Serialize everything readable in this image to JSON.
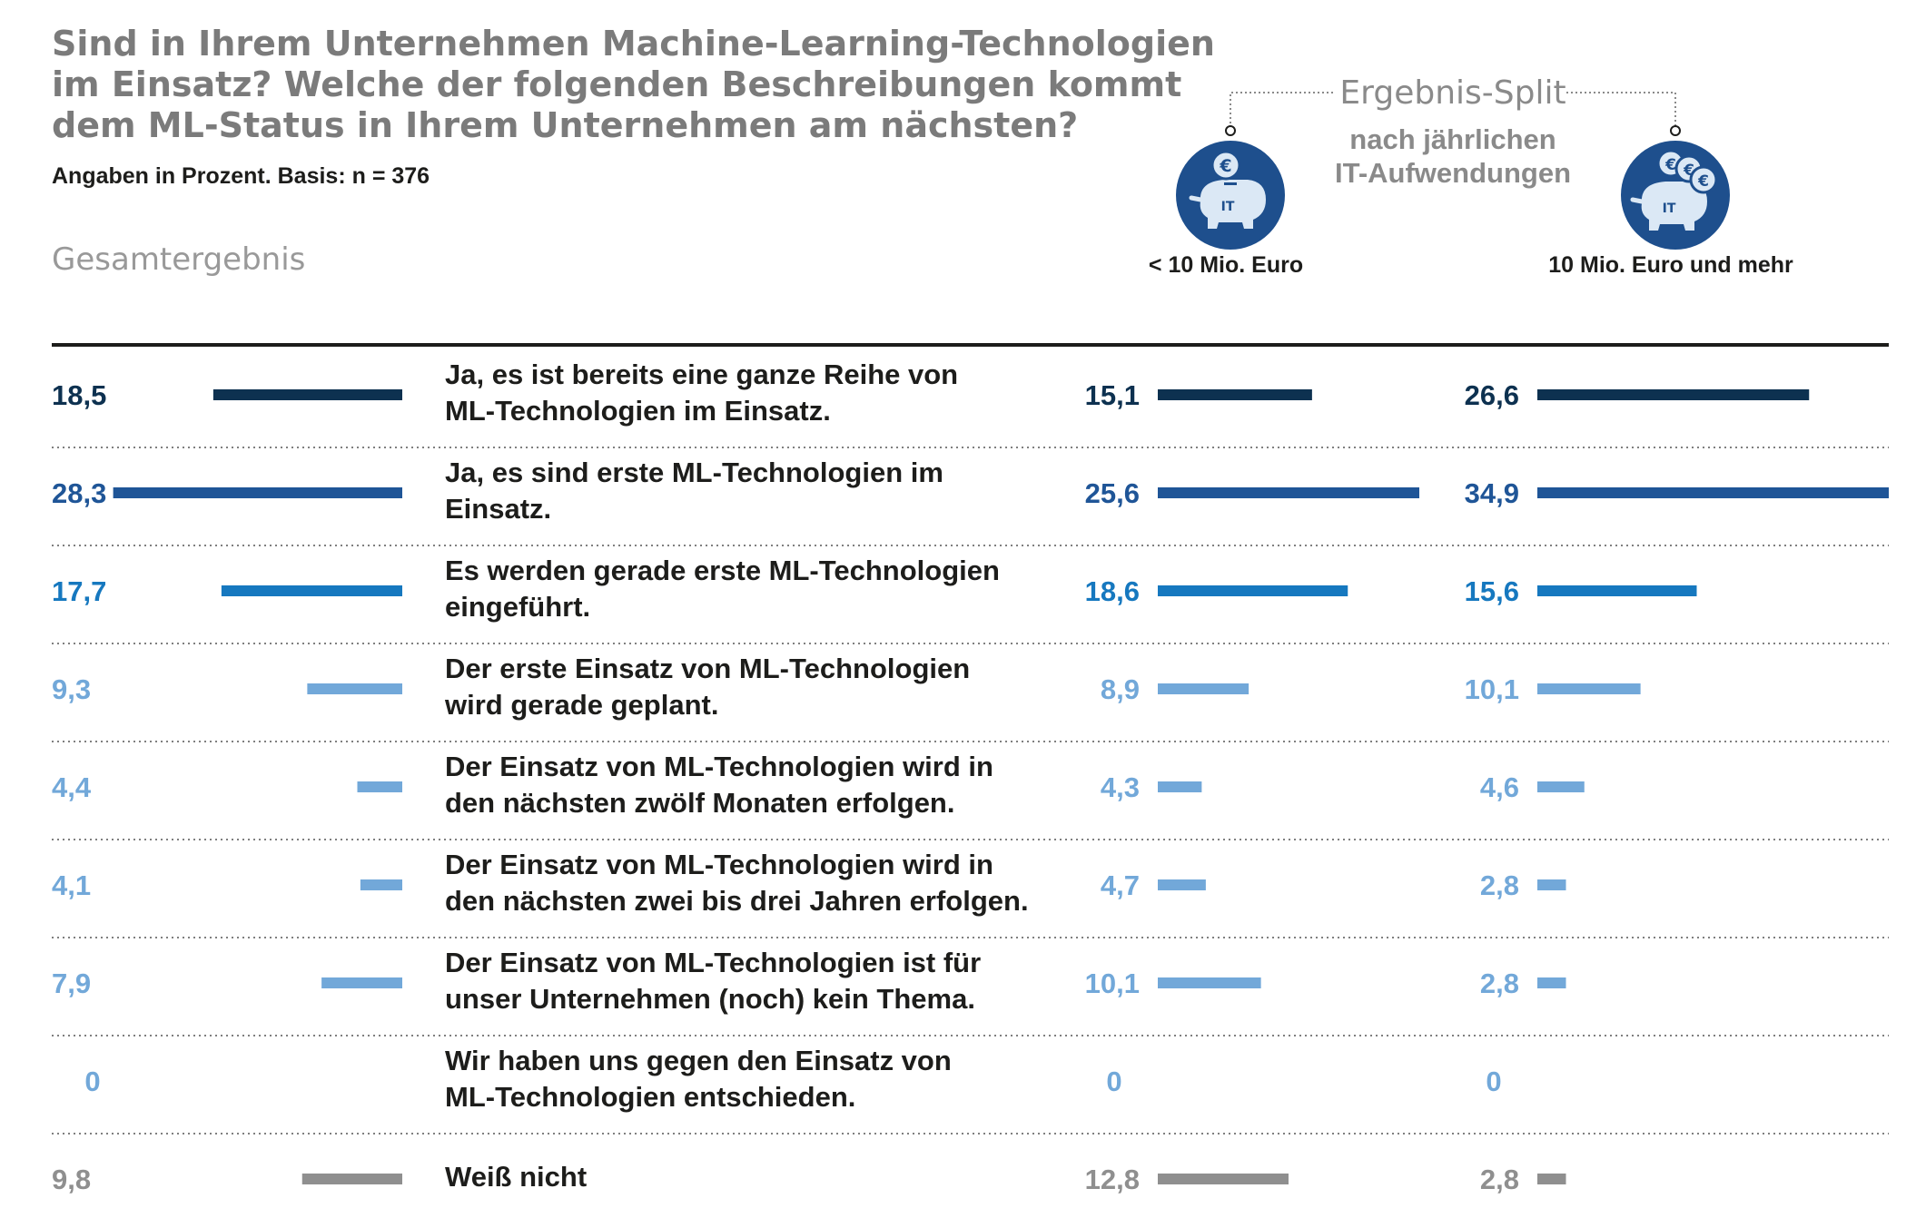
{
  "header": {
    "title_lines": [
      "Sind in Ihrem Unternehmen Machine-Learning-Technologien",
      "im Einsatz? Welche der folgenden Beschreibungen kommt",
      "dem ML-Status in Ihrem Unternehmen am nächsten?"
    ],
    "subtitle": "Angaben in Prozent. Basis: n = 376",
    "overall_label": "Gesamtergebnis"
  },
  "split": {
    "title": "Ergebnis-Split",
    "subtitle_lines": [
      "nach jährlichen",
      "IT-Aufwendungen"
    ],
    "segments": [
      {
        "label": "< 10 Mio. Euro",
        "icon": "piggy-bank-one-euro-icon",
        "icon_text": "IT"
      },
      {
        "label": "10 Mio. Euro und mehr",
        "icon": "piggy-bank-three-euro-icon",
        "icon_text": "IT"
      }
    ]
  },
  "colors": {
    "dark_navy": "#0d3150",
    "dark_blue": "#1f5597",
    "medium_blue": "#1678bf",
    "light_blue": "#72a8d9",
    "gray": "#8f8f8f",
    "icon_fill": "#1e4f8d"
  },
  "chart_data": {
    "type": "bar",
    "orientation": "horizontal",
    "value_format": "de-DE, one decimal",
    "categories": [
      [
        "Ja, es ist bereits eine ganze Reihe von",
        "ML-Technologien im Einsatz."
      ],
      [
        "Ja, es sind erste ML-Technologien im",
        "Einsatz."
      ],
      [
        "Es werden gerade erste ML-Technologien",
        "eingeführt."
      ],
      [
        "Der erste Einsatz von ML-Technologien",
        "wird gerade geplant."
      ],
      [
        "Der Einsatz von ML-Technologien wird in",
        "den nächsten zwölf Monaten erfolgen."
      ],
      [
        "Der Einsatz von ML-Technologien wird in",
        "den nächsten zwei bis drei Jahren erfolgen."
      ],
      [
        "Der Einsatz von ML-Technologien ist für",
        "unser Unternehmen (noch) kein Thema."
      ],
      [
        "Wir haben uns gegen den Einsatz von",
        "ML-Technologien entschieden."
      ],
      [
        "Weiß nicht"
      ]
    ],
    "row_colors": [
      "#0d3150",
      "#1f5597",
      "#1678bf",
      "#72a8d9",
      "#72a8d9",
      "#72a8d9",
      "#72a8d9",
      "#72a8d9",
      "#8f8f8f"
    ],
    "series": [
      {
        "name": "Gesamtergebnis",
        "values": [
          18.5,
          28.3,
          17.7,
          9.3,
          4.4,
          4.1,
          7.9,
          0,
          9.8
        ]
      },
      {
        "name": "< 10 Mio. Euro",
        "values": [
          15.1,
          25.6,
          18.6,
          8.9,
          4.3,
          4.7,
          10.1,
          0,
          12.8
        ]
      },
      {
        "name": "10 Mio. Euro und mehr",
        "values": [
          26.6,
          34.9,
          15.6,
          10.1,
          4.6,
          2.8,
          2.8,
          0,
          2.8
        ]
      }
    ],
    "xlim": [
      0,
      35
    ],
    "grid": false
  }
}
